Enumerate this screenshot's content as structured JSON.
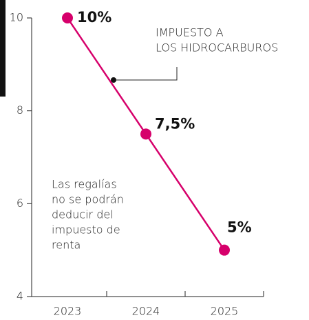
{
  "chart_data": {
    "type": "line",
    "categories": [
      "2023",
      "2024",
      "2025"
    ],
    "values": [
      10,
      7.5,
      5
    ],
    "value_labels": [
      "10%",
      "7,5%",
      "5%"
    ],
    "color": "#d6006b",
    "ylim": [
      4,
      10
    ],
    "yticks": [
      4,
      6,
      8,
      10
    ],
    "annotations": [
      [
        "IMPUESTO A",
        "LOS HIDROCARBUROS"
      ],
      [
        "Las regalías",
        "no se podrán",
        "deducir del",
        "impuesto de",
        "renta"
      ]
    ]
  }
}
